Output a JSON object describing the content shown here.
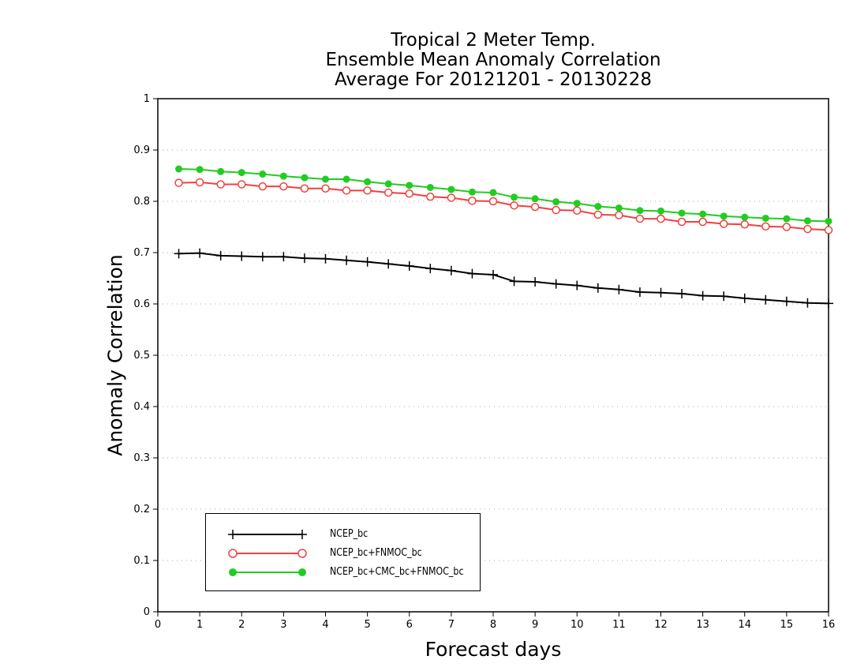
{
  "chart_data": {
    "type": "line",
    "title": [
      "Tropical 2 Meter Temp.",
      "Ensemble Mean Anomaly Correlation",
      "Average For 20121201 - 20130228"
    ],
    "xlabel": "Forecast days",
    "ylabel": "Anomaly Correlation",
    "xlim": [
      0,
      16
    ],
    "ylim": [
      0,
      1
    ],
    "xticks": [
      "0",
      "1",
      "2",
      "3",
      "4",
      "5",
      "6",
      "7",
      "8",
      "9",
      "10",
      "11",
      "12",
      "13",
      "14",
      "15",
      "16"
    ],
    "yticks": [
      "0",
      "0.1",
      "0.2",
      "0.3",
      "0.4",
      "0.5",
      "0.6",
      "0.7",
      "0.8",
      "0.9",
      "1"
    ],
    "grid": "horizontal dotted",
    "legend_position": "bottom-left",
    "x": [
      0.5,
      1,
      1.5,
      2,
      2.5,
      3,
      3.5,
      4,
      4.5,
      5,
      5.5,
      6,
      6.5,
      7,
      7.5,
      8,
      8.5,
      9,
      9.5,
      10,
      10.5,
      11,
      11.5,
      12,
      12.5,
      13,
      13.5,
      14,
      14.5,
      15,
      15.5,
      16
    ],
    "series": [
      {
        "name": "NCEP_bc",
        "color": "#000000",
        "marker": "plus",
        "values": [
          0.698,
          0.699,
          0.694,
          0.693,
          0.692,
          0.692,
          0.689,
          0.688,
          0.685,
          0.682,
          0.678,
          0.674,
          0.669,
          0.665,
          0.659,
          0.657,
          0.644,
          0.643,
          0.639,
          0.636,
          0.631,
          0.628,
          0.623,
          0.622,
          0.62,
          0.616,
          0.615,
          0.611,
          0.608,
          0.605,
          0.602,
          0.601
        ]
      },
      {
        "name": "NCEP_bc+FNMOC_bc",
        "color": "#f04040",
        "marker": "open-circle",
        "values": [
          0.836,
          0.837,
          0.833,
          0.833,
          0.829,
          0.829,
          0.825,
          0.825,
          0.821,
          0.821,
          0.817,
          0.815,
          0.809,
          0.807,
          0.801,
          0.8,
          0.792,
          0.789,
          0.783,
          0.782,
          0.774,
          0.773,
          0.766,
          0.766,
          0.76,
          0.76,
          0.756,
          0.755,
          0.751,
          0.75,
          0.746,
          0.744
        ]
      },
      {
        "name": "NCEP_bc+CMC_bc+FNMOC_bc",
        "color": "#22cc22",
        "marker": "filled-circle",
        "values": [
          0.863,
          0.862,
          0.858,
          0.856,
          0.853,
          0.849,
          0.846,
          0.843,
          0.843,
          0.838,
          0.834,
          0.831,
          0.827,
          0.823,
          0.818,
          0.817,
          0.808,
          0.805,
          0.799,
          0.796,
          0.79,
          0.787,
          0.782,
          0.781,
          0.777,
          0.775,
          0.771,
          0.769,
          0.767,
          0.766,
          0.762,
          0.761
        ]
      }
    ]
  }
}
